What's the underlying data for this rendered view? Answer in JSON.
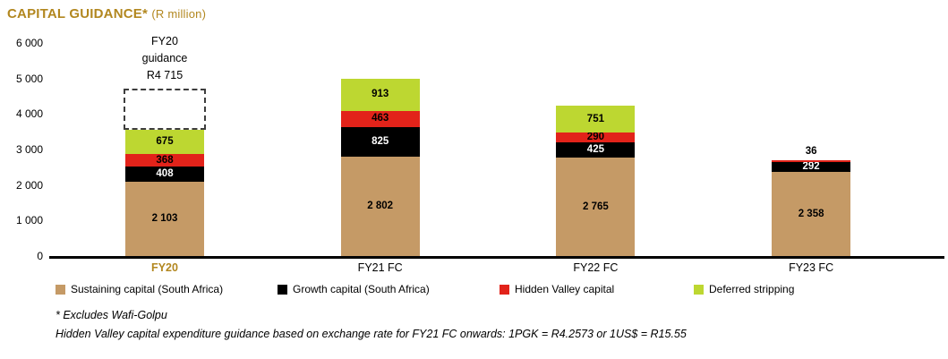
{
  "title": {
    "main": "CAPITAL GUIDANCE*",
    "unit": "(R million)"
  },
  "colors": {
    "title": "#b2871f",
    "sustaining": "#c59a66",
    "growth": "#000000",
    "hidden_valley": "#e2231a",
    "deferred": "#bdd731",
    "axis": "#000000",
    "fy20_label": "#b2871f"
  },
  "chart_data": {
    "type": "bar",
    "stacked": true,
    "title": "CAPITAL GUIDANCE* (R million)",
    "categories": [
      "FY20",
      "FY21 FC",
      "FY22 FC",
      "FY23 FC"
    ],
    "series": [
      {
        "name": "Sustaining capital (South Africa)",
        "color_key": "sustaining",
        "label_color": "#000000",
        "values": [
          2103,
          2802,
          2765,
          2358
        ]
      },
      {
        "name": "Growth capital (South Africa)",
        "color_key": "growth",
        "label_color": "#ffffff",
        "values": [
          408,
          825,
          425,
          292
        ]
      },
      {
        "name": "Hidden Valley capital",
        "color_key": "hidden_valley",
        "label_color": "#000000",
        "values": [
          368,
          463,
          290,
          36
        ]
      },
      {
        "name": "Deferred stripping",
        "color_key": "deferred",
        "label_color": "#000000",
        "values": [
          675,
          913,
          751,
          0
        ]
      }
    ],
    "ylim": [
      0,
      6000
    ],
    "ytick_step": 1000,
    "ytick_labels": [
      "0",
      "1 000",
      "2 000",
      "3 000",
      "4 000",
      "5 000",
      "6 000"
    ],
    "grid": false,
    "legend_position": "bottom",
    "annotation": {
      "category_index": 0,
      "lines": [
        "FY20",
        "guidance",
        "R4 715"
      ],
      "box_from": 3554,
      "box_to": 4715
    }
  },
  "legend": [
    {
      "label": "Sustaining capital (South Africa)",
      "color_key": "sustaining"
    },
    {
      "label": "Growth capital (South Africa)",
      "color_key": "growth"
    },
    {
      "label": "Hidden Valley capital",
      "color_key": "hidden_valley"
    },
    {
      "label": "Deferred stripping",
      "color_key": "deferred"
    }
  ],
  "footnotes": [
    "* Excludes Wafi-Golpu",
    "Hidden Valley capital expenditure guidance based on exchange rate for FY21 FC onwards: 1PGK = R4.2573 or 1US$ = R15.55"
  ]
}
